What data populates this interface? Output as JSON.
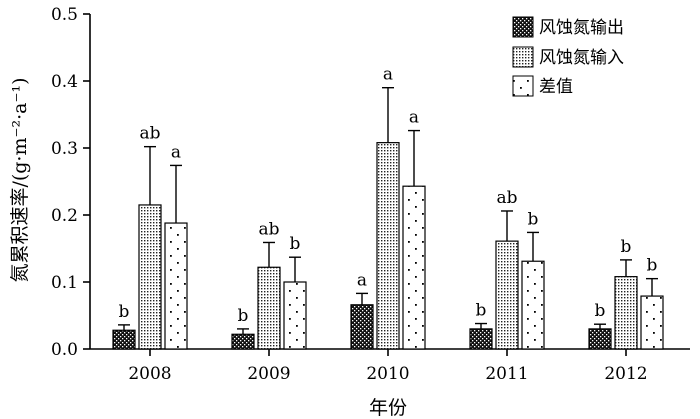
{
  "chart_data": {
    "type": "bar",
    "categories": [
      "2008",
      "2009",
      "2010",
      "2011",
      "2012"
    ],
    "xlabel": "年份",
    "ylabel": "氮累积速率/(g·m⁻²·a⁻¹)",
    "ylim": [
      0,
      0.5
    ],
    "yticks": [
      "0.0",
      "0.1",
      "0.2",
      "0.3",
      "0.4",
      "0.5"
    ],
    "legend_position": "top-right",
    "grid": false,
    "series": [
      {
        "name": "风蚀氮输出",
        "pattern": "dense-dots-dark",
        "values": [
          0.028,
          0.022,
          0.066,
          0.03,
          0.03
        ],
        "errors": [
          0.008,
          0.008,
          0.017,
          0.008,
          0.007
        ],
        "labels": [
          "b",
          "b",
          "a",
          "b",
          "b"
        ]
      },
      {
        "name": "风蚀氮输入",
        "pattern": "fine-dots",
        "values": [
          0.215,
          0.122,
          0.308,
          0.161,
          0.108
        ],
        "errors": [
          0.087,
          0.037,
          0.082,
          0.045,
          0.025
        ],
        "labels": [
          "ab",
          "ab",
          "a",
          "ab",
          "b"
        ]
      },
      {
        "name": "差值",
        "pattern": "sparse-dots",
        "values": [
          0.188,
          0.1,
          0.243,
          0.131,
          0.079
        ],
        "errors": [
          0.086,
          0.037,
          0.083,
          0.043,
          0.026
        ],
        "labels": [
          "a",
          "b",
          "a",
          "b",
          "b"
        ]
      }
    ]
  }
}
